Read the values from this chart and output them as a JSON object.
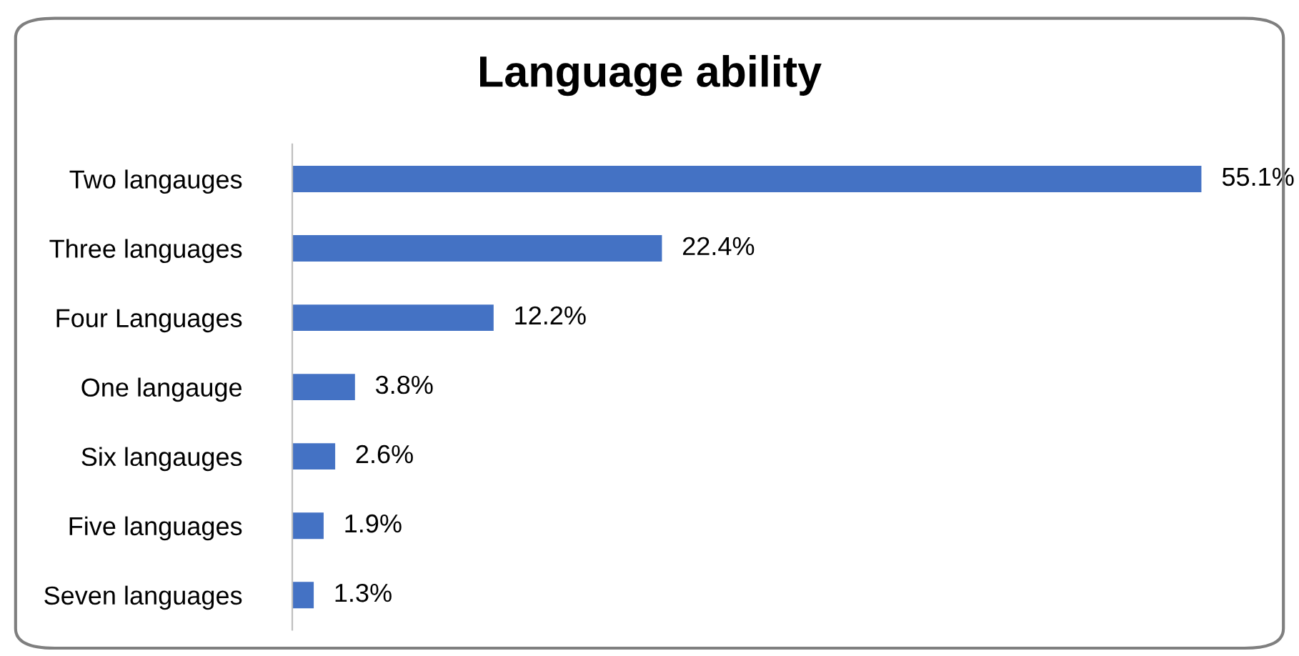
{
  "chart_data": {
    "type": "bar",
    "orientation": "horizontal",
    "title": "Language ability",
    "categories": [
      "Two langauges",
      "Three languages",
      "Four Languages",
      "One langauge",
      "Six langauges",
      "Five languages",
      "Seven languages"
    ],
    "values": [
      55.1,
      22.4,
      12.2,
      3.8,
      2.6,
      1.9,
      1.3
    ],
    "value_labels": [
      "55.1%",
      "22.4%",
      "12.2%",
      "3.8%",
      "2.6%",
      "1.9%",
      "1.3%"
    ],
    "color": "#4472c4",
    "grid": false,
    "legend": false
  }
}
